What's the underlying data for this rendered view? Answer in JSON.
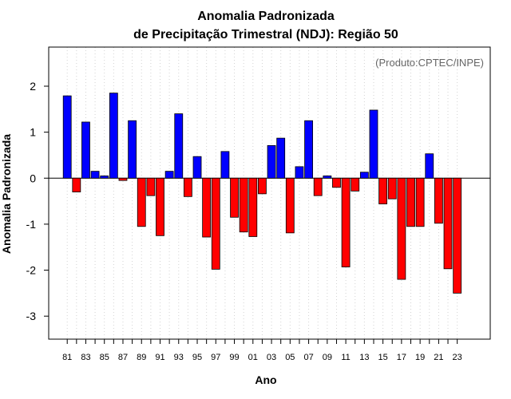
{
  "chart_data": {
    "type": "bar",
    "title_line1": "Anomalia Padronizada",
    "title_line2": "de Precipitação Trimestral (NDJ): Região 50",
    "xlabel": "Ano",
    "ylabel": "Anomalia Padronizada",
    "annotation": "(Produto:CPTEC/INPE)",
    "ylim": [
      -3.5,
      2.85
    ],
    "yticks": [
      -3,
      -2,
      -1,
      0,
      1,
      2
    ],
    "ytick_labels": [
      "-3",
      "-2",
      "-1",
      "0",
      "1",
      "2"
    ],
    "xtick_labels": [
      "81",
      "83",
      "85",
      "87",
      "89",
      "91",
      "93",
      "95",
      "97",
      "99",
      "01",
      "03",
      "05",
      "07",
      "09",
      "11",
      "13",
      "15",
      "17",
      "19",
      "21",
      "23"
    ],
    "categories": [
      "81",
      "82",
      "83",
      "84",
      "85",
      "86",
      "87",
      "88",
      "89",
      "90",
      "91",
      "92",
      "93",
      "94",
      "95",
      "96",
      "97",
      "98",
      "99",
      "00",
      "01",
      "02",
      "03",
      "04",
      "05",
      "06",
      "07",
      "08",
      "09",
      "10",
      "11",
      "12",
      "13",
      "14",
      "15",
      "16",
      "17",
      "18",
      "19",
      "20",
      "21",
      "22",
      "23"
    ],
    "values": [
      1.79,
      -0.3,
      1.22,
      0.15,
      0.05,
      1.85,
      -0.05,
      1.25,
      -1.05,
      -0.38,
      -1.25,
      0.15,
      1.4,
      -0.4,
      0.47,
      -1.28,
      -1.98,
      0.58,
      -0.85,
      -1.17,
      -1.27,
      -0.34,
      0.71,
      0.87,
      -1.19,
      0.25,
      1.25,
      -0.38,
      0.05,
      -0.2,
      -1.93,
      -0.28,
      0.13,
      1.48,
      -0.56,
      -0.45,
      -2.2,
      -1.05,
      -1.05,
      0.53,
      -0.98,
      -1.97,
      -2.5
    ],
    "positive_color": "#0000ff",
    "negative_color": "#ff0000",
    "grid": "vertical dotted"
  }
}
